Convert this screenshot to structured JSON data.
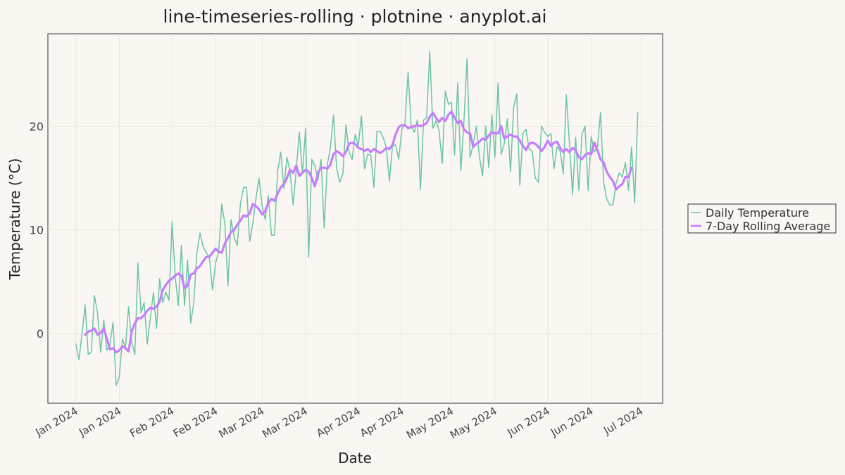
{
  "chart_data": {
    "type": "line",
    "title": "line-timeseries-rolling · plotnine · anyplot.ai",
    "xlabel": "Date",
    "ylabel": "Temperature (°C)",
    "xlim": [
      "2023-12-23",
      "2024-07-08"
    ],
    "ylim": [
      -6.7,
      28.9
    ],
    "grid": true,
    "legend_placement": "right",
    "x_tick_labels": [
      "Jan 2024",
      "Jan 2024",
      "Feb 2024",
      "Feb 2024",
      "Mar 2024",
      "Mar 2024",
      "Apr 2024",
      "Apr 2024",
      "May 2024",
      "May 2024",
      "Jun 2024",
      "Jun 2024",
      "Jul 2024"
    ],
    "x_tick_dates": [
      "2024-01-01",
      "2024-01-15",
      "2024-02-01",
      "2024-02-15",
      "2024-03-01",
      "2024-03-15",
      "2024-04-01",
      "2024-04-15",
      "2024-05-01",
      "2024-05-15",
      "2024-06-01",
      "2024-06-15",
      "2024-07-01"
    ],
    "y_ticks": [
      0,
      10,
      20
    ],
    "x_start": "2024-01-01",
    "series": [
      {
        "name": "Daily Temperature",
        "color": "#6CC4A4",
        "values": [
          -1.0,
          -2.5,
          0.0,
          2.8,
          -2.0,
          -1.8,
          3.7,
          2.0,
          -1.8,
          1.3,
          -1.6,
          -1.0,
          1.1,
          -5.0,
          -4.2,
          -0.5,
          -1.3,
          2.6,
          -0.8,
          -2.0,
          6.8,
          2.0,
          3.0,
          -1.0,
          1.5,
          4.0,
          0.5,
          5.3,
          3.0,
          4.0,
          3.2,
          10.8,
          5.5,
          2.7,
          8.5,
          2.7,
          7.1,
          1.0,
          3.0,
          7.8,
          9.7,
          8.4,
          7.8,
          7.4,
          4.2,
          6.8,
          7.9,
          12.5,
          10.6,
          4.6,
          11.0,
          9.3,
          8.5,
          12.5,
          14.1,
          14.1,
          8.9,
          10.6,
          13.0,
          15.0,
          12.3,
          11.0,
          13.3,
          9.5,
          9.5,
          15.7,
          17.5,
          14.0,
          17.0,
          15.6,
          12.4,
          15.8,
          19.4,
          15.4,
          19.8,
          7.4,
          16.8,
          16.2,
          14.8,
          16.8,
          10.2,
          16.3,
          17.9,
          21.1,
          16.0,
          14.6,
          15.4,
          20.1,
          17.5,
          16.8,
          19.2,
          18.1,
          21.0,
          15.9,
          17.3,
          17.2,
          14.1,
          19.5,
          19.5,
          18.9,
          17.9,
          14.7,
          18.1,
          18.2,
          16.8,
          19.7,
          20.2,
          25.2,
          20.0,
          19.4,
          20.6,
          13.9,
          20.6,
          20.8,
          27.2,
          19.8,
          20.5,
          19.6,
          16.4,
          23.4,
          22.1,
          22.3,
          17.2,
          24.2,
          15.7,
          20.4,
          26.5,
          17.0,
          18.2,
          20.0,
          17.0,
          15.2,
          20.0,
          16.0,
          21.1,
          17.0,
          24.2,
          17.3,
          18.3,
          20.7,
          15.6,
          21.8,
          23.1,
          14.3,
          19.3,
          19.7,
          17.8,
          17.6,
          15.0,
          14.6,
          20.0,
          19.4,
          19.0,
          19.3,
          15.9,
          18.0,
          17.6,
          15.4,
          23.0,
          18.3,
          13.4,
          18.9,
          13.8,
          19.2,
          20.0,
          13.8,
          19.0,
          17.5,
          18.0,
          21.3,
          14.6,
          13.0,
          12.4,
          12.4,
          14.5,
          15.5,
          15.1,
          16.5,
          13.8,
          18.0,
          12.6,
          21.3
        ]
      },
      {
        "name": "7-Day Rolling Average",
        "color": "#C77DFF",
        "start_index": 3,
        "values": [
          -0.1,
          0.2,
          0.3,
          0.5,
          -0.1,
          0.1,
          0.5,
          -0.5,
          -1.5,
          -1.4,
          -1.8,
          -1.6,
          -1.2,
          -1.4,
          -1.7,
          0.2,
          1.0,
          1.5,
          1.5,
          1.8,
          2.2,
          2.5,
          2.4,
          2.6,
          3.1,
          4.2,
          4.7,
          5.1,
          5.3,
          5.6,
          5.8,
          5.6,
          4.4,
          4.6,
          5.7,
          5.8,
          6.3,
          6.5,
          7.0,
          7.4,
          7.4,
          7.8,
          8.2,
          7.9,
          7.8,
          8.7,
          9.2,
          9.8,
          10.0,
          10.5,
          10.9,
          11.4,
          11.3,
          11.6,
          12.5,
          12.3,
          12.0,
          11.5,
          11.8,
          12.6,
          13.0,
          12.8,
          13.5,
          14.1,
          14.4,
          15.0,
          15.8,
          15.5,
          16.2,
          15.2,
          15.5,
          15.8,
          15.6,
          15.0,
          14.2,
          15.5,
          16.0,
          16.0,
          15.9,
          16.3,
          17.3,
          17.6,
          17.4,
          17.1,
          17.5,
          18.3,
          18.4,
          18.3,
          17.9,
          17.8,
          17.6,
          17.8,
          17.5,
          17.8,
          17.6,
          17.4,
          17.6,
          17.9,
          17.8,
          18.2,
          19.2,
          19.9,
          20.1,
          20.1,
          19.8,
          19.9,
          20.0,
          20.1,
          20.0,
          20.1,
          20.3,
          20.9,
          21.3,
          20.8,
          20.4,
          20.8,
          20.5,
          21.1,
          21.4,
          20.8,
          20.3,
          20.5,
          19.7,
          19.4,
          19.3,
          18.0,
          18.3,
          18.5,
          18.8,
          18.7,
          19.1,
          19.4,
          19.3,
          19.3,
          20.0,
          18.8,
          19.0,
          19.2,
          19.0,
          19.0,
          18.6,
          18.1,
          17.7,
          18.3,
          18.4,
          18.3,
          18.0,
          17.6,
          18.0,
          18.6,
          18.1,
          18.4,
          18.5,
          17.9,
          17.5,
          17.8,
          17.5,
          17.9,
          17.7,
          17.0,
          16.8,
          17.2,
          17.4,
          17.3,
          18.4,
          17.7,
          16.8,
          16.5,
          15.6,
          15.1,
          14.7,
          13.9,
          14.2,
          14.4,
          15.1,
          15.1,
          16.0
        ]
      }
    ]
  }
}
